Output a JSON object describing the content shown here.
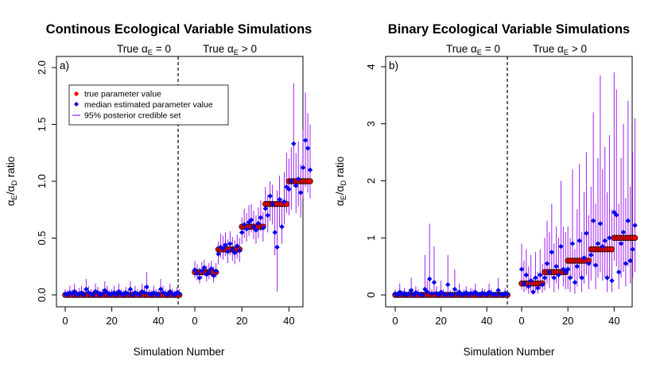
{
  "chart_data": [
    {
      "type": "scatter",
      "title": "Continous Ecological Variable Simulations",
      "panel_label": "a)",
      "xlabel": "Simulation Number",
      "ylabel_main": "α",
      "ylabel_sub1": "E",
      "ylabel_slash": "/α",
      "ylabel_sub2": "D",
      "ylabel_tail": " ratio",
      "region_left_prefix": "True α",
      "region_left_sub": "E",
      "region_left_suffix": " = 0",
      "region_right_prefix": "True α",
      "region_right_sub": "E",
      "region_right_suffix": " > 0",
      "ylim": [
        0,
        2.0
      ],
      "yticks": [
        "0.0",
        "0.5",
        "1.0",
        "1.5",
        "2.0"
      ],
      "xticks_left": [
        "0",
        "20",
        "40"
      ],
      "xticks_right": [
        "0",
        "20",
        "40"
      ],
      "legend": [
        "true parameter value",
        "median estimated parameter value",
        "95% posterior credible set"
      ],
      "legend_position": "top-left",
      "colors": {
        "true": "#ff0000",
        "median": "#0000ee",
        "ci": "#a020f0"
      },
      "group_true_values": [
        0,
        0.2,
        0.4,
        0.6,
        0.8,
        1.0
      ],
      "group_sizes": [
        50,
        10,
        10,
        10,
        10,
        10
      ],
      "median_estimates": [
        [
          0.01,
          0.0,
          0.02,
          0.01,
          0.03,
          0.0,
          0.01,
          0.02,
          0.0,
          0.05,
          0.02,
          0.01,
          0.0,
          0.03,
          0.02,
          0.0,
          0.01,
          0.04,
          0.02,
          0.0,
          0.01,
          0.02,
          0.0,
          0.03,
          0.01,
          0.0,
          0.02,
          0.01,
          0.05,
          0.0,
          0.02,
          0.01,
          0.0,
          0.03,
          0.02,
          0.07,
          0.01,
          0.0,
          0.02,
          0.01,
          0.0,
          0.05,
          0.02,
          0.01,
          0.0,
          0.03,
          0.01,
          0.0,
          0.02,
          0.01
        ],
        [
          0.22,
          0.19,
          0.15,
          0.21,
          0.24,
          0.18,
          0.2,
          0.23,
          0.17,
          0.21
        ],
        [
          0.36,
          0.42,
          0.41,
          0.44,
          0.38,
          0.45,
          0.4,
          0.37,
          0.43,
          0.39
        ],
        [
          0.55,
          0.62,
          0.58,
          0.64,
          0.66,
          0.6,
          0.57,
          0.63,
          0.68,
          0.59
        ],
        [
          0.76,
          0.7,
          0.87,
          0.8,
          0.55,
          0.42,
          0.84,
          0.6,
          0.82,
          0.95
        ],
        [
          0.93,
          1.0,
          1.33,
          0.96,
          1.02,
          0.9,
          1.12,
          1.36,
          1.29,
          1.1
        ]
      ],
      "ci_lower": [
        [
          0,
          0,
          0,
          0,
          0,
          0,
          0,
          0,
          0,
          0,
          0,
          0,
          0,
          0,
          0,
          0,
          0,
          0,
          0,
          0,
          0,
          0,
          0,
          0,
          0,
          0,
          0,
          0,
          0,
          0,
          0,
          0,
          0,
          0,
          0,
          0,
          0,
          0,
          0,
          0,
          0,
          0,
          0,
          0,
          0,
          0,
          0,
          0,
          0,
          0
        ],
        [
          0.15,
          0.13,
          0.1,
          0.15,
          0.17,
          0.12,
          0.14,
          0.16,
          0.11,
          0.15
        ],
        [
          0.27,
          0.33,
          0.31,
          0.34,
          0.28,
          0.35,
          0.3,
          0.27,
          0.32,
          0.29
        ],
        [
          0.45,
          0.5,
          0.47,
          0.52,
          0.55,
          0.49,
          0.45,
          0.5,
          0.56,
          0.47
        ],
        [
          0.6,
          0.55,
          0.65,
          0.62,
          0.35,
          0.03,
          0.6,
          0.45,
          0.62,
          0.72
        ],
        [
          0.7,
          0.75,
          0.95,
          0.72,
          0.78,
          0.68,
          0.85,
          0.95,
          0.9,
          0.85
        ]
      ],
      "ci_upper": [
        [
          0.05,
          0.04,
          0.08,
          0.05,
          0.1,
          0.04,
          0.06,
          0.08,
          0.04,
          0.14,
          0.08,
          0.05,
          0.04,
          0.1,
          0.07,
          0.04,
          0.05,
          0.12,
          0.08,
          0.04,
          0.05,
          0.08,
          0.04,
          0.1,
          0.05,
          0.04,
          0.07,
          0.05,
          0.12,
          0.04,
          0.08,
          0.05,
          0.04,
          0.1,
          0.08,
          0.2,
          0.05,
          0.04,
          0.08,
          0.05,
          0.04,
          0.14,
          0.08,
          0.05,
          0.04,
          0.1,
          0.05,
          0.04,
          0.07,
          0.05
        ],
        [
          0.3,
          0.27,
          0.24,
          0.29,
          0.31,
          0.26,
          0.28,
          0.3,
          0.25,
          0.28
        ],
        [
          0.47,
          0.54,
          0.52,
          0.55,
          0.49,
          0.56,
          0.51,
          0.48,
          0.53,
          0.5
        ],
        [
          0.68,
          0.76,
          0.72,
          0.79,
          0.8,
          0.74,
          0.7,
          0.77,
          0.83,
          0.73
        ],
        [
          0.95,
          0.88,
          1.0,
          0.97,
          0.78,
          0.92,
          1.05,
          0.85,
          1.08,
          1.25
        ],
        [
          1.2,
          1.3,
          1.86,
          1.25,
          1.35,
          1.15,
          1.45,
          1.78,
          1.6,
          1.5
        ]
      ]
    },
    {
      "type": "scatter",
      "title": "Binary Ecological Variable Simulations",
      "panel_label": "b)",
      "xlabel": "Simulation Number",
      "ylabel_main": "α",
      "ylabel_sub1": "E",
      "ylabel_slash": "/α",
      "ylabel_sub2": "D",
      "ylabel_tail": " ratio",
      "region_left_prefix": "True α",
      "region_left_sub": "E",
      "region_left_suffix": " = 0",
      "region_right_prefix": "True α",
      "region_right_sub": "E",
      "region_right_suffix": " > 0",
      "ylim": [
        0,
        4
      ],
      "yticks": [
        "0",
        "1",
        "2",
        "3",
        "4"
      ],
      "xticks_left": [
        "0",
        "20",
        "40"
      ],
      "xticks_right": [
        "0",
        "20",
        "40"
      ],
      "colors": {
        "true": "#ff0000",
        "median": "#0000ee",
        "ci": "#a020f0"
      },
      "group_true_values": [
        0,
        0.2,
        0.4,
        0.6,
        0.8,
        1.0
      ],
      "group_sizes": [
        50,
        10,
        10,
        10,
        10,
        10
      ],
      "median_estimates": [
        [
          0.02,
          0.0,
          0.05,
          0.01,
          0.03,
          0.0,
          0.02,
          0.08,
          0.0,
          0.04,
          0.02,
          0.01,
          0.0,
          0.1,
          0.05,
          0.28,
          0.02,
          0.22,
          0.03,
          0.0,
          0.05,
          0.02,
          0.0,
          0.18,
          0.01,
          0.0,
          0.1,
          0.02,
          0.05,
          0.0,
          0.02,
          0.04,
          0.0,
          0.03,
          0.02,
          0.05,
          0.01,
          0.0,
          0.03,
          0.02,
          0.0,
          0.05,
          0.02,
          0.01,
          0.0,
          0.08,
          0.01,
          0.0,
          0.03,
          0.01
        ],
        [
          0.45,
          0.2,
          0.35,
          0.15,
          0.25,
          0.05,
          0.3,
          0.12,
          0.35,
          0.18
        ],
        [
          0.3,
          0.55,
          0.4,
          0.75,
          0.3,
          0.5,
          0.35,
          0.85,
          0.45,
          0.4
        ],
        [
          0.45,
          0.3,
          0.9,
          0.22,
          0.5,
          0.95,
          0.3,
          0.65,
          1.08,
          0.55
        ],
        [
          0.7,
          1.3,
          0.52,
          0.9,
          1.25,
          0.85,
          0.95,
          0.3,
          1.0,
          0.25
        ],
        [
          1.45,
          1.4,
          0.4,
          0.9,
          1.1,
          0.55,
          1.3,
          0.6,
          0.8,
          1.22
        ]
      ],
      "ci_lower": [
        [
          0,
          0,
          0,
          0,
          0,
          0,
          0,
          0,
          0,
          0,
          0,
          0,
          0,
          0,
          0,
          0,
          0,
          0,
          0,
          0,
          0,
          0,
          0,
          0,
          0,
          0,
          0,
          0,
          0,
          0,
          0,
          0,
          0,
          0,
          0,
          0,
          0,
          0,
          0,
          0,
          0,
          0,
          0,
          0,
          0,
          0,
          0,
          0,
          0,
          0
        ],
        [
          0.1,
          0.05,
          0.08,
          0.02,
          0.05,
          0.01,
          0.06,
          0.02,
          0.1,
          0.04
        ],
        [
          0.08,
          0.2,
          0.12,
          0.3,
          0.05,
          0.2,
          0.1,
          0.35,
          0.15,
          0.1
        ],
        [
          0.1,
          0.05,
          0.3,
          0.02,
          0.15,
          0.3,
          0.05,
          0.2,
          0.35,
          0.1
        ],
        [
          0.25,
          0.5,
          0.1,
          0.3,
          0.4,
          0.25,
          0.3,
          0.05,
          0.3,
          0.05
        ],
        [
          0.6,
          0.5,
          0.1,
          0.3,
          0.4,
          0.15,
          0.5,
          0.2,
          0.3,
          0.4
        ]
      ],
      "ci_upper": [
        [
          0.1,
          0.05,
          0.2,
          0.08,
          0.12,
          0.05,
          0.1,
          0.3,
          0.05,
          0.15,
          0.1,
          0.05,
          0.05,
          0.7,
          0.25,
          1.25,
          0.1,
          0.85,
          0.15,
          0.05,
          0.25,
          0.1,
          0.05,
          0.7,
          0.08,
          0.05,
          0.45,
          0.1,
          0.2,
          0.05,
          0.1,
          0.15,
          0.05,
          0.12,
          0.1,
          0.2,
          0.05,
          0.05,
          0.12,
          0.1,
          0.05,
          0.2,
          0.1,
          0.05,
          0.05,
          0.3,
          0.05,
          0.05,
          0.12,
          0.05
        ],
        [
          0.9,
          0.6,
          0.8,
          0.5,
          0.7,
          0.3,
          0.75,
          0.4,
          0.8,
          0.55
        ],
        [
          1.0,
          1.3,
          1.1,
          1.6,
          0.9,
          1.2,
          1.0,
          2.0,
          1.2,
          1.1
        ],
        [
          1.2,
          1.0,
          2.2,
          0.8,
          1.5,
          2.3,
          1.1,
          1.8,
          2.5,
          1.4
        ],
        [
          1.9,
          3.2,
          1.6,
          2.4,
          3.85,
          2.2,
          2.6,
          1.8,
          2.8,
          1.5
        ],
        [
          3.9,
          3.6,
          1.6,
          2.4,
          3.0,
          1.7,
          3.4,
          1.9,
          2.5,
          3.1
        ]
      ]
    }
  ]
}
